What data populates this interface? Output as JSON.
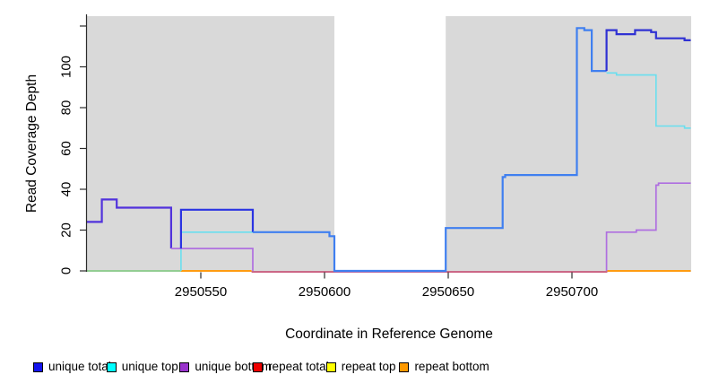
{
  "chart_data": {
    "type": "line",
    "subtype": "step-coverage-plot",
    "title": "",
    "xlabel": "Coordinate in Reference Genome",
    "ylabel": "Read Coverage Depth",
    "xlim": [
      2950504,
      2950748
    ],
    "ylim": [
      0,
      125
    ],
    "grid": "off",
    "plot_bg_color": "#d9d9d9",
    "gap_region": {
      "from": 2950604,
      "to": 2950649,
      "color": "#ffffff"
    },
    "x_ticks": [
      {
        "value": 2950550,
        "label": "2950550"
      },
      {
        "value": 2950600,
        "label": "2950600"
      },
      {
        "value": 2950650,
        "label": "2950650"
      },
      {
        "value": 2950700,
        "label": "2950700"
      }
    ],
    "y_ticks": [
      {
        "value": 0,
        "label": "0"
      },
      {
        "value": 20,
        "label": "20"
      },
      {
        "value": 40,
        "label": "40"
      },
      {
        "value": 60,
        "label": "60"
      },
      {
        "value": 80,
        "label": "80"
      },
      {
        "value": 100,
        "label": "100"
      },
      {
        "value": 120,
        "label": ""
      }
    ],
    "legend": [
      {
        "label": "unique total",
        "color": "#1414ee"
      },
      {
        "label": "unique top",
        "color": "#00ffff"
      },
      {
        "label": "unique bottom",
        "color": "#9933cc"
      },
      {
        "label": "repeat total",
        "color": "#ee0000"
      },
      {
        "label": "repeat top",
        "color": "#ffff00"
      },
      {
        "label": "repeat bottom",
        "color": "#ff9900"
      }
    ],
    "series_segments": [
      {
        "name": "repeat-total-baseline",
        "color": "#c4486f",
        "width": 1.6,
        "points": [
          [
            2950570.5,
            -0.5
          ],
          [
            2950714.3,
            -0.5
          ]
        ]
      },
      {
        "name": "gap-baseline-unique-bottom",
        "color": "#9b6ce8",
        "width": 1.4,
        "points": [
          [
            2950604,
            -0.2
          ],
          [
            2950649,
            -0.2
          ]
        ]
      },
      {
        "name": "repeat-bottom-baseline-left",
        "color": "#ff9c12",
        "width": 2,
        "points": [
          [
            2950542,
            0
          ],
          [
            2950570.5,
            0
          ]
        ]
      },
      {
        "name": "repeat-bottom-baseline-right",
        "color": "#ff9c12",
        "width": 2,
        "points": [
          [
            2950714.3,
            0
          ],
          [
            2950748,
            0
          ]
        ]
      },
      {
        "name": "unique-top-over-repeat-baseline",
        "color": "#7cc97c",
        "width": 1.6,
        "points": [
          [
            2950504,
            0
          ],
          [
            2950542,
            0
          ]
        ]
      },
      {
        "name": "unique-top-mid",
        "color": "#69dfef",
        "width": 1.6,
        "points": [
          [
            2950542,
            0
          ],
          [
            2950542,
            19
          ],
          [
            2950571,
            19
          ]
        ]
      },
      {
        "name": "unique-top-right",
        "color": "#69dfef",
        "width": 1.6,
        "points": [
          [
            2950714,
            97
          ],
          [
            2950718,
            97
          ],
          [
            2950718,
            96
          ],
          [
            2950734,
            96
          ],
          [
            2950734,
            71
          ],
          [
            2950745.5,
            71
          ],
          [
            2950745.5,
            70
          ],
          [
            2950748,
            70
          ]
        ]
      },
      {
        "name": "unique-total-over-bottom-stair",
        "color": "#5132dc",
        "width": 2.2,
        "points": [
          [
            2950504,
            24
          ],
          [
            2950510,
            24
          ],
          [
            2950510,
            35
          ],
          [
            2950516,
            35
          ],
          [
            2950516,
            31
          ],
          [
            2950538,
            31
          ],
          [
            2950538,
            11
          ]
        ]
      },
      {
        "name": "unique-bottom-mid",
        "color": "#af6fe0",
        "width": 1.7,
        "points": [
          [
            2950538,
            11
          ],
          [
            2950571,
            11
          ],
          [
            2950571,
            0
          ]
        ]
      },
      {
        "name": "unique-total-box",
        "color": "#2b34e2",
        "width": 2.2,
        "points": [
          [
            2950542,
            11
          ],
          [
            2950542,
            30
          ],
          [
            2950571,
            30
          ],
          [
            2950571,
            19
          ]
        ]
      },
      {
        "name": "unique-total-over-top",
        "color": "#3f7ff0",
        "width": 2.2,
        "points": [
          [
            2950571,
            19
          ],
          [
            2950602,
            19
          ],
          [
            2950602,
            17
          ],
          [
            2950604,
            17
          ],
          [
            2950604,
            0
          ],
          [
            2950649,
            0
          ],
          [
            2950649,
            21
          ],
          [
            2950672,
            21
          ],
          [
            2950672,
            46
          ],
          [
            2950673,
            46
          ],
          [
            2950673,
            47
          ],
          [
            2950702,
            47
          ],
          [
            2950702,
            119
          ],
          [
            2950705,
            119
          ],
          [
            2950705,
            118
          ],
          [
            2950708,
            118
          ],
          [
            2950708,
            98
          ],
          [
            2950714,
            98
          ]
        ]
      },
      {
        "name": "unique-total-right",
        "color": "#2f31d3",
        "width": 2.2,
        "points": [
          [
            2950714,
            98
          ],
          [
            2950714,
            118
          ],
          [
            2950718,
            118
          ],
          [
            2950718,
            116
          ],
          [
            2950725.5,
            116
          ],
          [
            2950725.5,
            118
          ],
          [
            2950732,
            118
          ],
          [
            2950732,
            117
          ],
          [
            2950734,
            117
          ],
          [
            2950734,
            114
          ],
          [
            2950745.5,
            114
          ],
          [
            2950745.5,
            113
          ],
          [
            2950748,
            113
          ]
        ]
      },
      {
        "name": "unique-bottom-right",
        "color": "#af6fe0",
        "width": 1.7,
        "points": [
          [
            2950714,
            0
          ],
          [
            2950714,
            19
          ],
          [
            2950726,
            19
          ],
          [
            2950726,
            20
          ],
          [
            2950734,
            20
          ],
          [
            2950734,
            42
          ],
          [
            2950735,
            42
          ],
          [
            2950735,
            43
          ],
          [
            2950748,
            43
          ]
        ]
      }
    ]
  }
}
